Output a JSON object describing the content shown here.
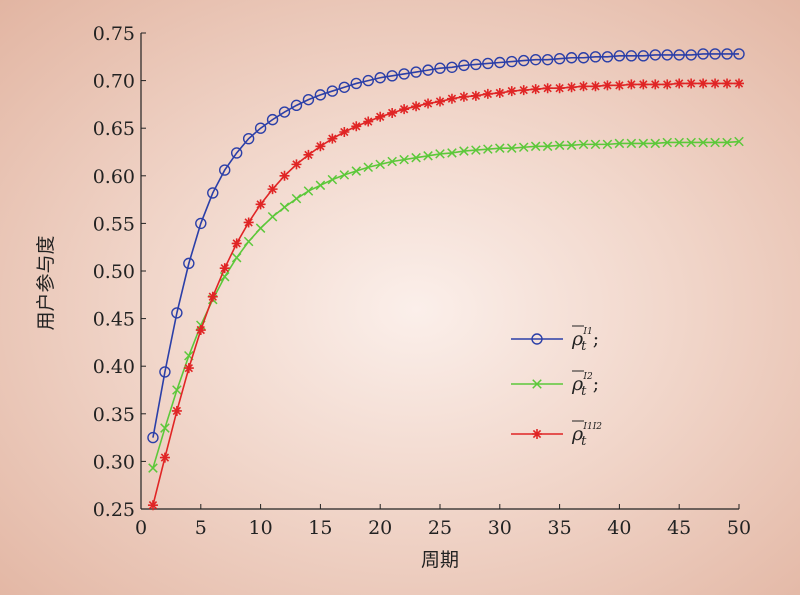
{
  "chart_data": {
    "type": "line",
    "xlabel": "周期",
    "ylabel": "用户参与度",
    "xlim": [
      0,
      50
    ],
    "ylim": [
      0.25,
      0.75
    ],
    "x_ticks": [
      "0",
      "5",
      "10",
      "15",
      "20",
      "25",
      "30",
      "35",
      "40",
      "45",
      "50"
    ],
    "y_ticks": [
      "0.25",
      "0.30",
      "0.35",
      "0.40",
      "0.45",
      "0.50",
      "0.55",
      "0.60",
      "0.65",
      "0.70",
      "0.75"
    ],
    "grid": false,
    "legend_position": "right-middle",
    "x": [
      1,
      2,
      3,
      4,
      5,
      6,
      7,
      8,
      9,
      10,
      11,
      12,
      13,
      14,
      15,
      16,
      17,
      18,
      19,
      20,
      21,
      22,
      23,
      24,
      25,
      26,
      27,
      28,
      29,
      30,
      31,
      32,
      33,
      34,
      35,
      36,
      37,
      38,
      39,
      40,
      41,
      42,
      43,
      44,
      45,
      46,
      47,
      48,
      49,
      50
    ],
    "series": [
      {
        "name": "ρ̄_t^{I1}",
        "legend_base": "ρ",
        "legend_sup": "I1",
        "legend_suffix": ";",
        "color": "#2b3fa8",
        "marker": "circle",
        "values": [
          0.325,
          0.394,
          0.456,
          0.508,
          0.55,
          0.582,
          0.606,
          0.624,
          0.639,
          0.65,
          0.659,
          0.667,
          0.674,
          0.68,
          0.685,
          0.689,
          0.693,
          0.697,
          0.7,
          0.703,
          0.705,
          0.707,
          0.709,
          0.711,
          0.713,
          0.714,
          0.716,
          0.717,
          0.718,
          0.719,
          0.72,
          0.721,
          0.722,
          0.722,
          0.723,
          0.724,
          0.724,
          0.725,
          0.725,
          0.726,
          0.726,
          0.726,
          0.727,
          0.727,
          0.727,
          0.727,
          0.728,
          0.728,
          0.728,
          0.728
        ]
      },
      {
        "name": "ρ̄_t^{I2}",
        "legend_base": "ρ",
        "legend_sup": "I2",
        "legend_suffix": ";",
        "color": "#5cc83a",
        "marker": "x",
        "values": [
          0.293,
          0.335,
          0.375,
          0.411,
          0.443,
          0.47,
          0.494,
          0.514,
          0.531,
          0.545,
          0.557,
          0.567,
          0.576,
          0.584,
          0.59,
          0.596,
          0.601,
          0.605,
          0.609,
          0.612,
          0.615,
          0.617,
          0.619,
          0.621,
          0.623,
          0.624,
          0.626,
          0.627,
          0.628,
          0.629,
          0.629,
          0.63,
          0.631,
          0.631,
          0.632,
          0.632,
          0.633,
          0.633,
          0.633,
          0.634,
          0.634,
          0.634,
          0.634,
          0.635,
          0.635,
          0.635,
          0.635,
          0.635,
          0.635,
          0.636
        ]
      },
      {
        "name": "ρ̄_t^{I1I2}",
        "legend_base": "ρ",
        "legend_sup": "I1I2",
        "legend_suffix": "",
        "color": "#e02525",
        "marker": "asterisk",
        "values": [
          0.254,
          0.304,
          0.353,
          0.398,
          0.438,
          0.473,
          0.503,
          0.529,
          0.551,
          0.57,
          0.586,
          0.6,
          0.612,
          0.622,
          0.631,
          0.639,
          0.646,
          0.652,
          0.657,
          0.662,
          0.666,
          0.67,
          0.673,
          0.676,
          0.678,
          0.681,
          0.683,
          0.684,
          0.686,
          0.687,
          0.689,
          0.69,
          0.691,
          0.692,
          0.692,
          0.693,
          0.694,
          0.694,
          0.695,
          0.695,
          0.696,
          0.696,
          0.696,
          0.696,
          0.697,
          0.697,
          0.697,
          0.697,
          0.697,
          0.697
        ]
      }
    ]
  }
}
